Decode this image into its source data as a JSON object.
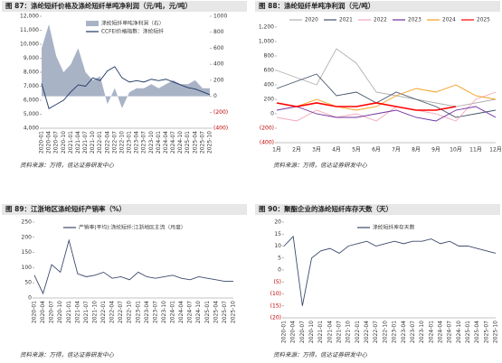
{
  "chart_data": [
    {
      "type": "line",
      "title": "图 87：涤纶短纤价格及涤纶短纤单吨净利润（元/吨，元/吨）",
      "source": "资料来源：万得，信达证券研发中心",
      "categories": [
        "2020-01",
        "2020-04",
        "2020-07",
        "2020-10",
        "2021-01",
        "2021-04",
        "2021-07",
        "2021-10",
        "2022-01",
        "2022-04",
        "2022-07",
        "2022-10",
        "2023-01",
        "2023-04",
        "2023-07",
        "2023-10",
        "2024-01",
        "2024-04",
        "2024-07",
        "2024-10",
        "2025-01",
        "2025-04",
        "2025-07",
        "2025-10"
      ],
      "series": [
        {
          "name": "涤纶短纤单吨净利润（右）",
          "color": "#a9b3c6",
          "style": "area",
          "axis": "y2",
          "values": [
            600,
            900,
            500,
            300,
            400,
            600,
            300,
            200,
            250,
            -100,
            100,
            -150,
            50,
            100,
            100,
            150,
            100,
            150,
            200,
            150,
            150,
            200,
            100,
            100
          ]
        },
        {
          "name": "CCFEI价格指数：涤纶短纤",
          "color": "#1f3864",
          "style": "line",
          "values": [
            7200,
            5400,
            5700,
            6000,
            6600,
            7100,
            7000,
            7600,
            7400,
            8100,
            8400,
            7600,
            7300,
            7400,
            7300,
            7500,
            7400,
            7500,
            7300,
            7100,
            6900,
            6800,
            6600,
            6400
          ]
        }
      ],
      "ylim": [
        4000,
        12000
      ],
      "yticks": [
        {
          "value": 4000,
          "label": "4,000"
        },
        {
          "value": 5000,
          "label": "5,000"
        },
        {
          "value": 6000,
          "label": "6,000"
        },
        {
          "value": 7000,
          "label": "7,000"
        },
        {
          "value": 8000,
          "label": "8,000"
        },
        {
          "value": 9000,
          "label": "9,000"
        },
        {
          "value": 10000,
          "label": "10,000"
        },
        {
          "value": 11000,
          "label": "11,000"
        },
        {
          "value": 12000,
          "label": "12,000"
        }
      ],
      "y2lim": [
        -400,
        1000
      ],
      "y2ticks": [
        {
          "value": -400,
          "label": "(400)"
        },
        {
          "value": -200,
          "label": "(200)"
        },
        0,
        200,
        400,
        600,
        800,
        1000
      ],
      "negative_tick_color": "#c00000"
    },
    {
      "type": "line",
      "title": "图 88：涤纶短纤单吨净利润（元/吨）",
      "source": "资料来源：万得，信达证券研发中心",
      "categories": [
        "1月",
        "2月",
        "3月",
        "4月",
        "5月",
        "6月",
        "7月",
        "8月",
        "9月",
        "10月",
        "11月",
        "12月"
      ],
      "series": [
        {
          "name": "2020",
          "color": "#b0b0b0",
          "values": [
            600,
            500,
            400,
            900,
            700,
            300,
            250,
            200,
            150,
            100,
            150,
            200
          ]
        },
        {
          "name": "2021",
          "color": "#44546a",
          "values": [
            350,
            450,
            550,
            250,
            300,
            150,
            300,
            200,
            100,
            -50,
            0,
            50
          ]
        },
        {
          "name": "2022",
          "color": "#f4a6b6",
          "values": [
            -50,
            -100,
            50,
            -50,
            0,
            -100,
            100,
            50,
            0,
            -100,
            200,
            300
          ]
        },
        {
          "name": "2023",
          "color": "#7030a0",
          "values": [
            50,
            100,
            0,
            -50,
            -50,
            0,
            50,
            -50,
            -100,
            50,
            100,
            -50
          ]
        },
        {
          "name": "2024",
          "color": "#f59d1d",
          "values": [
            150,
            100,
            200,
            100,
            50,
            100,
            250,
            350,
            300,
            400,
            250,
            200
          ]
        },
        {
          "name": "2025",
          "color": "#ff0000",
          "values": [
            150,
            100,
            150,
            100,
            100,
            150,
            100,
            50,
            50,
            100,
            null,
            null
          ]
        }
      ],
      "ylim": [
        -400,
        1200
      ],
      "yticks": [
        {
          "value": -400,
          "label": "(400)"
        },
        {
          "value": -200,
          "label": "(200)"
        },
        0,
        200,
        400,
        600,
        800,
        {
          "value": 1000,
          "label": "1,000"
        },
        {
          "value": 1200,
          "label": "1,200"
        }
      ],
      "negative_tick_color": "#c00000"
    },
    {
      "type": "line",
      "title": "图 89：江浙地区涤纶短纤产销率（%）",
      "source": "资料来源：万得，信达证券研发中心",
      "categories": [
        "2020-01",
        "2020-04",
        "2020-07",
        "2020-10",
        "2021-01",
        "2021-04",
        "2021-07",
        "2021-10",
        "2022-01",
        "2022-04",
        "2022-07",
        "2022-10",
        "2023-01",
        "2023-04",
        "2023-07",
        "2023-10",
        "2024-01",
        "2024-04",
        "2024-07",
        "2024-10",
        "2025-01",
        "2025-04",
        "2025-07",
        "2025-10"
      ],
      "series": [
        {
          "name": "产销率(平均):涤纶短纤:江浙地区主流（月度）",
          "color": "#3c4a6b",
          "values": [
            75,
            15,
            110,
            85,
            190,
            80,
            70,
            75,
            85,
            65,
            70,
            60,
            85,
            70,
            65,
            70,
            75,
            65,
            60,
            70,
            65,
            60,
            55,
            55
          ]
        }
      ],
      "ylim": [
        0,
        250
      ],
      "yticks": [
        0,
        50,
        100,
        150,
        200,
        250
      ]
    },
    {
      "type": "line",
      "title": "图 90：聚酯企业的涤纶短纤库存天数（天）",
      "source": "资料来源：万得，信达证券研发中心",
      "categories": [
        "2020-01",
        "2020-04",
        "2020-07",
        "2020-10",
        "2021-01",
        "2021-04",
        "2021-07",
        "2021-10",
        "2022-01",
        "2022-04",
        "2022-07",
        "2022-10",
        "2023-01",
        "2023-04",
        "2023-07",
        "2023-10",
        "2024-01",
        "2024-04",
        "2024-07",
        "2024-10",
        "2025-01",
        "2025-04",
        "2025-07",
        "2025-10"
      ],
      "series": [
        {
          "name": "涤纶短纤库存天数",
          "color": "#3c4a6b",
          "values": [
            10,
            14,
            -15,
            5,
            8,
            9,
            7,
            10,
            11,
            12,
            10,
            11,
            12,
            11,
            12,
            12,
            13,
            11,
            12,
            10,
            10,
            9,
            8,
            7
          ]
        }
      ],
      "ylim": [
        -20,
        20
      ],
      "yticks": [
        {
          "value": -20,
          "label": "(20)"
        },
        {
          "value": -15,
          "label": "(15)"
        },
        {
          "value": -10,
          "label": "(10)"
        },
        {
          "value": -5,
          "label": "(5)"
        },
        0,
        5,
        10,
        15,
        20
      ],
      "negative_tick_color": "#c00000"
    }
  ]
}
